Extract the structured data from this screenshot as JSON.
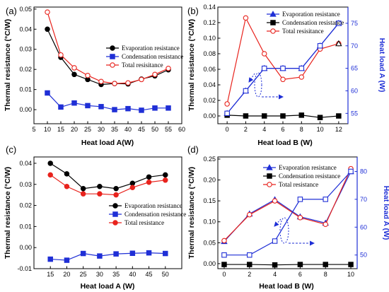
{
  "colors": {
    "black": "#000000",
    "blue": "#1f2fd6",
    "red": "#e8231d",
    "axis_right": "#1f2fd6"
  },
  "chart_data": [
    {
      "panel": "(a)",
      "type": "line",
      "xlabel": "Heat load A(W)",
      "ylabel": "Thermal resistance (°C/W)",
      "xlim": [
        5,
        60
      ],
      "ylim": [
        -0.007,
        0.051
      ],
      "xticks": [
        5,
        10,
        15,
        20,
        25,
        30,
        35,
        40,
        45,
        50,
        55,
        60
      ],
      "yticks": [
        0.0,
        0.01,
        0.02,
        0.03,
        0.04,
        0.05
      ],
      "ytick_labels": [
        "0.00",
        "0.01",
        "0.02",
        "0.03",
        "0.04",
        "0.05"
      ],
      "legend_position": "top-right",
      "series": [
        {
          "name": "Evaporation resistance",
          "color": "#000000",
          "marker": "circle",
          "x": [
            10,
            15,
            20,
            25,
            30,
            35,
            40,
            45,
            50,
            55
          ],
          "values": [
            0.04,
            0.026,
            0.0175,
            0.015,
            0.0125,
            0.013,
            0.0128,
            0.0152,
            0.0168,
            0.0198
          ]
        },
        {
          "name": "Condensation resistance",
          "color": "#1f2fd6",
          "marker": "square",
          "x": [
            10,
            15,
            20,
            25,
            30,
            35,
            40,
            45,
            50,
            55
          ],
          "values": [
            0.0083,
            0.0013,
            0.0033,
            0.002,
            0.0015,
            0.0,
            0.0005,
            -0.0003,
            0.0008,
            0.0008
          ]
        },
        {
          "name": "Total resisitance",
          "color": "#e8231d",
          "marker": "circle-open",
          "x": [
            10,
            15,
            20,
            25,
            30,
            35,
            40,
            45,
            50,
            55
          ],
          "values": [
            0.0485,
            0.0272,
            0.0208,
            0.017,
            0.014,
            0.013,
            0.0133,
            0.015,
            0.0175,
            0.0205
          ]
        }
      ]
    },
    {
      "panel": "(b)",
      "type": "line",
      "xlabel": "Heat load B (W)",
      "ylabel": "Thermal resistance (°C/W)",
      "ylabel_right": "Heat load A (W)",
      "xlim": [
        -1,
        13
      ],
      "ylim": [
        -0.01,
        0.14
      ],
      "ylim_right": [
        52.7,
        78.6
      ],
      "xticks": [
        0,
        2,
        4,
        6,
        8,
        10,
        12
      ],
      "yticks": [
        0.0,
        0.02,
        0.04,
        0.06,
        0.08,
        0.1,
        0.12,
        0.14
      ],
      "ytick_labels": [
        "0.00",
        "0.02",
        "0.04",
        "0.06",
        "0.08",
        "0.10",
        "0.12",
        "0.14"
      ],
      "yticks_right": [
        55,
        60,
        65,
        70,
        75
      ],
      "legend_position": "top-right",
      "series": [
        {
          "name": "Evaporation resistance",
          "color": "#1f2fd6",
          "marker": "triangle",
          "axis": "right",
          "x": [
            0,
            2,
            4,
            6,
            8,
            10,
            12
          ],
          "values": [
            55,
            60,
            65,
            65,
            65,
            70,
            75
          ]
        },
        {
          "name": "Condensation resistance",
          "color": "#000000",
          "marker": "square",
          "x": [
            0,
            2,
            4,
            6,
            8,
            10,
            12
          ],
          "values": [
            0.001,
            0.0,
            0.0,
            0.0,
            0.001,
            -0.002,
            0.0
          ]
        },
        {
          "name": "Total resisitance",
          "color": "#e8231d",
          "marker": "circle-open",
          "x": [
            0,
            2,
            4,
            6,
            8,
            10,
            12
          ],
          "values": [
            0.0155,
            0.126,
            0.08,
            0.047,
            0.05,
            0.086,
            0.093
          ]
        },
        {
          "color": "#1f2fd6",
          "marker": "square-open",
          "axis": "right",
          "x": [
            0,
            2,
            4,
            6,
            8,
            10,
            12
          ],
          "values": [
            55,
            60,
            65,
            65,
            65,
            70,
            75
          ]
        },
        {
          "color": "#000000",
          "marker": "triangle-open",
          "x": [
            12
          ],
          "values": [
            0.093
          ]
        }
      ]
    },
    {
      "panel": "(c)",
      "type": "line",
      "xlabel": "Heat load A (W)",
      "ylabel": "Thermal resistance (°C/W)",
      "xlim": [
        10,
        55
      ],
      "ylim": [
        -0.01,
        0.043
      ],
      "xticks": [
        15,
        20,
        25,
        30,
        35,
        40,
        45,
        50
      ],
      "yticks": [
        -0.01,
        0.0,
        0.01,
        0.02,
        0.03,
        0.04
      ],
      "ytick_labels": [
        "-0.01",
        "0.00",
        "0.01",
        "0.02",
        "0.03",
        "0.04"
      ],
      "legend_position": "right",
      "series": [
        {
          "name": "Evaporation resistance",
          "color": "#000000",
          "marker": "circle",
          "x": [
            15,
            20,
            25,
            30,
            35,
            40,
            45,
            50
          ],
          "values": [
            0.04,
            0.035,
            0.028,
            0.029,
            0.028,
            0.0305,
            0.0335,
            0.0345
          ]
        },
        {
          "name": "Condensation resistance",
          "color": "#1f2fd6",
          "marker": "square",
          "x": [
            15,
            20,
            25,
            30,
            35,
            40,
            45,
            50
          ],
          "values": [
            -0.0055,
            -0.006,
            -0.0028,
            -0.004,
            -0.003,
            -0.0027,
            -0.0025,
            -0.0028
          ]
        },
        {
          "name": "Total resistance",
          "color": "#e8231d",
          "marker": "circle",
          "x": [
            15,
            20,
            25,
            30,
            35,
            40,
            45,
            50
          ],
          "values": [
            0.0345,
            0.029,
            0.0255,
            0.0255,
            0.025,
            0.0285,
            0.031,
            0.032
          ]
        }
      ]
    },
    {
      "panel": "(d)",
      "type": "line",
      "xlabel": "Heat load B (W)",
      "ylabel": "Thermal resistance (°C/W)",
      "ylabel_right": "Heat load A (W)",
      "xlim": [
        -0.5,
        10.5
      ],
      "ylim": [
        -0.012,
        0.255
      ],
      "ylim_right": [
        45.1,
        85.2
      ],
      "xticks": [
        0,
        2,
        4,
        6,
        8,
        10
      ],
      "yticks": [
        0.0,
        0.05,
        0.1,
        0.15,
        0.2,
        0.25
      ],
      "ytick_labels": [
        "0.00",
        "0.05",
        "0.10",
        "0.15",
        "0.20",
        "0.25"
      ],
      "yticks_right": [
        50,
        60,
        70,
        80
      ],
      "legend_position": "top-left",
      "series": [
        {
          "name": "Evaporation resistance",
          "color": "#1f2fd6",
          "marker": "triangle",
          "x": [
            0,
            2,
            4,
            6,
            8,
            10
          ],
          "values": [
            0.053,
            0.119,
            0.153,
            0.112,
            0.097,
            0.22
          ]
        },
        {
          "name": "Condensation resistance",
          "color": "#000000",
          "marker": "square",
          "x": [
            0,
            2,
            4,
            6,
            8,
            10
          ],
          "values": [
            -0.002,
            -0.002,
            -0.003,
            -0.002,
            -0.002,
            -0.002
          ]
        },
        {
          "name": "Total resistance",
          "color": "#e8231d",
          "marker": "circle-open",
          "x": [
            0,
            2,
            4,
            6,
            8,
            10
          ],
          "values": [
            0.055,
            0.117,
            0.15,
            0.11,
            0.094,
            0.227
          ]
        },
        {
          "color": "#1f2fd6",
          "marker": "square-open",
          "axis": "right",
          "x": [
            0,
            2,
            4,
            6,
            8,
            10
          ],
          "values": [
            50,
            50,
            55,
            70,
            70,
            80
          ]
        }
      ]
    }
  ]
}
